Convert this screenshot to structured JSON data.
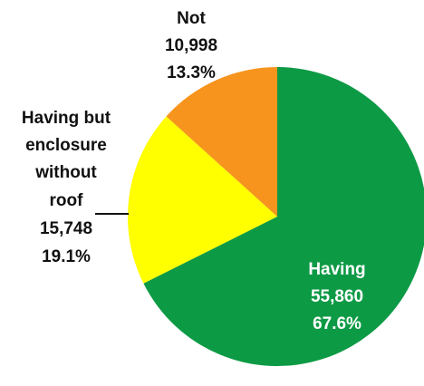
{
  "chart_data": {
    "type": "pie",
    "title": "",
    "slices": [
      {
        "name": "Having",
        "value": 55860,
        "value_label": "55,860",
        "percent_label": "67.6%",
        "color": "#0d9a45"
      },
      {
        "name": "Having but enclosure without roof",
        "name_lines": [
          "Having but",
          "enclosure",
          "without",
          "roof"
        ],
        "value": 15748,
        "value_label": "15,748",
        "percent_label": "19.1%",
        "color": "#ffff00"
      },
      {
        "name": "Not",
        "value": 10998,
        "value_label": "10,998",
        "percent_label": "13.3%",
        "color": "#f7941d"
      }
    ],
    "start_angle_deg": 0,
    "direction": "clockwise"
  }
}
